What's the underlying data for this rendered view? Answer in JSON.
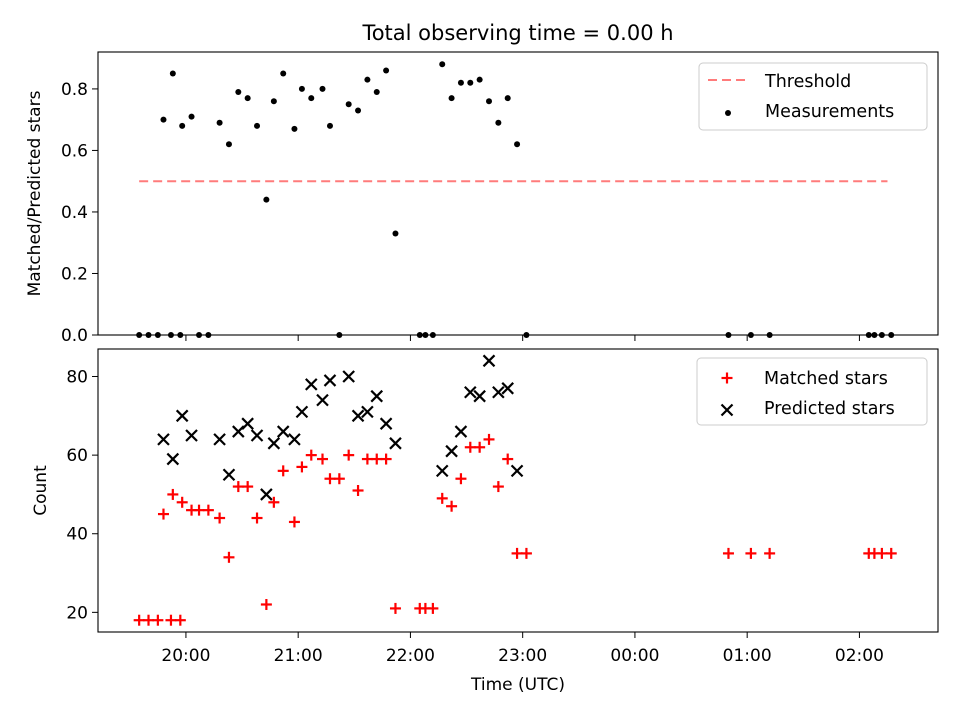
{
  "figure": {
    "title": "Total observing time = 0.00 h"
  },
  "chart_data": [
    {
      "type": "scatter",
      "title": "Total observing time = 0.00 h",
      "xlabel": "",
      "ylabel": "Matched/Predicted stars",
      "xlim": [
        "19:13",
        "02:42"
      ],
      "ylim": [
        0,
        0.92
      ],
      "yticks": [
        0.0,
        0.2,
        0.4,
        0.6,
        0.8
      ],
      "ytick_labels": [
        "0.0",
        "0.2",
        "0.4",
        "0.6",
        "0.8"
      ],
      "grid": false,
      "legend_position": "upper right",
      "threshold": {
        "name": "Threshold",
        "value": 0.5,
        "x_start": "19:35",
        "x_end": "02:15",
        "color": "#ff7b7b",
        "style": "dashed"
      },
      "series": [
        {
          "name": "Measurements",
          "marker": "dot",
          "color": "#000000",
          "points": [
            [
              "19:35",
              0.0
            ],
            [
              "19:40",
              0.0
            ],
            [
              "19:45",
              0.0
            ],
            [
              "19:52",
              0.0
            ],
            [
              "19:57",
              0.0
            ],
            [
              "19:48",
              0.7
            ],
            [
              "19:53",
              0.85
            ],
            [
              "19:58",
              0.68
            ],
            [
              "20:03",
              0.71
            ],
            [
              "20:07",
              0.0
            ],
            [
              "20:12",
              0.0
            ],
            [
              "20:18",
              0.69
            ],
            [
              "20:23",
              0.62
            ],
            [
              "20:28",
              0.79
            ],
            [
              "20:33",
              0.77
            ],
            [
              "20:38",
              0.68
            ],
            [
              "20:43",
              0.44
            ],
            [
              "20:47",
              0.76
            ],
            [
              "20:52",
              0.85
            ],
            [
              "20:58",
              0.67
            ],
            [
              "21:02",
              0.8
            ],
            [
              "21:07",
              0.77
            ],
            [
              "21:13",
              0.8
            ],
            [
              "21:17",
              0.68
            ],
            [
              "21:22",
              0.0
            ],
            [
              "21:27",
              0.75
            ],
            [
              "21:32",
              0.73
            ],
            [
              "21:37",
              0.83
            ],
            [
              "21:42",
              0.79
            ],
            [
              "21:47",
              0.86
            ],
            [
              "21:52",
              0.33
            ],
            [
              "22:05",
              0.0
            ],
            [
              "22:08",
              0.0
            ],
            [
              "22:12",
              0.0
            ],
            [
              "22:17",
              0.88
            ],
            [
              "22:22",
              0.77
            ],
            [
              "22:27",
              0.82
            ],
            [
              "22:32",
              0.82
            ],
            [
              "22:37",
              0.83
            ],
            [
              "22:42",
              0.76
            ],
            [
              "22:47",
              0.69
            ],
            [
              "22:52",
              0.77
            ],
            [
              "22:57",
              0.62
            ],
            [
              "23:02",
              0.0
            ],
            [
              "00:50",
              0.0
            ],
            [
              "01:02",
              0.0
            ],
            [
              "01:12",
              0.0
            ],
            [
              "02:05",
              0.0
            ],
            [
              "02:08",
              0.0
            ],
            [
              "02:12",
              0.0
            ],
            [
              "02:17",
              0.0
            ]
          ]
        }
      ]
    },
    {
      "type": "scatter",
      "xlabel": "Time (UTC)",
      "ylabel": "Count",
      "xlim": [
        "19:13",
        "02:42"
      ],
      "ylim": [
        15,
        87
      ],
      "yticks": [
        20,
        40,
        60,
        80
      ],
      "ytick_labels": [
        "20",
        "40",
        "60",
        "80"
      ],
      "xticks": [
        "20:00",
        "21:00",
        "22:00",
        "23:00",
        "00:00",
        "01:00",
        "02:00"
      ],
      "grid": false,
      "legend_position": "upper right",
      "series": [
        {
          "name": "Matched stars",
          "marker": "plus",
          "color": "#ff0000",
          "points": [
            [
              "19:35",
              18
            ],
            [
              "19:40",
              18
            ],
            [
              "19:45",
              18
            ],
            [
              "19:52",
              18
            ],
            [
              "19:57",
              18
            ],
            [
              "19:48",
              45
            ],
            [
              "19:53",
              50
            ],
            [
              "19:58",
              48
            ],
            [
              "20:03",
              46
            ],
            [
              "20:07",
              46
            ],
            [
              "20:12",
              46
            ],
            [
              "20:18",
              44
            ],
            [
              "20:23",
              34
            ],
            [
              "20:28",
              52
            ],
            [
              "20:33",
              52
            ],
            [
              "20:38",
              44
            ],
            [
              "20:43",
              22
            ],
            [
              "20:47",
              48
            ],
            [
              "20:52",
              56
            ],
            [
              "20:58",
              43
            ],
            [
              "21:02",
              57
            ],
            [
              "21:07",
              60
            ],
            [
              "21:13",
              59
            ],
            [
              "21:17",
              54
            ],
            [
              "21:22",
              54
            ],
            [
              "21:27",
              60
            ],
            [
              "21:32",
              51
            ],
            [
              "21:37",
              59
            ],
            [
              "21:42",
              59
            ],
            [
              "21:47",
              59
            ],
            [
              "21:52",
              21
            ],
            [
              "22:05",
              21
            ],
            [
              "22:08",
              21
            ],
            [
              "22:12",
              21
            ],
            [
              "22:17",
              49
            ],
            [
              "22:22",
              47
            ],
            [
              "22:27",
              54
            ],
            [
              "22:32",
              62
            ],
            [
              "22:37",
              62
            ],
            [
              "22:42",
              64
            ],
            [
              "22:47",
              52
            ],
            [
              "22:52",
              59
            ],
            [
              "22:57",
              35
            ],
            [
              "23:02",
              35
            ],
            [
              "00:50",
              35
            ],
            [
              "01:02",
              35
            ],
            [
              "01:12",
              35
            ],
            [
              "02:05",
              35
            ],
            [
              "02:08",
              35
            ],
            [
              "02:12",
              35
            ],
            [
              "02:17",
              35
            ]
          ]
        },
        {
          "name": "Predicted stars",
          "marker": "x",
          "color": "#000000",
          "points": [
            [
              "19:48",
              64
            ],
            [
              "19:53",
              59
            ],
            [
              "19:58",
              70
            ],
            [
              "20:03",
              65
            ],
            [
              "20:18",
              64
            ],
            [
              "20:23",
              55
            ],
            [
              "20:28",
              66
            ],
            [
              "20:33",
              68
            ],
            [
              "20:38",
              65
            ],
            [
              "20:43",
              50
            ],
            [
              "20:47",
              63
            ],
            [
              "20:52",
              66
            ],
            [
              "20:58",
              64
            ],
            [
              "21:02",
              71
            ],
            [
              "21:07",
              78
            ],
            [
              "21:13",
              74
            ],
            [
              "21:17",
              79
            ],
            [
              "21:27",
              80
            ],
            [
              "21:32",
              70
            ],
            [
              "21:37",
              71
            ],
            [
              "21:42",
              75
            ],
            [
              "21:47",
              68
            ],
            [
              "21:52",
              63
            ],
            [
              "22:17",
              56
            ],
            [
              "22:22",
              61
            ],
            [
              "22:27",
              66
            ],
            [
              "22:32",
              76
            ],
            [
              "22:37",
              75
            ],
            [
              "22:42",
              84
            ],
            [
              "22:47",
              76
            ],
            [
              "22:52",
              77
            ],
            [
              "22:57",
              56
            ]
          ]
        }
      ]
    }
  ]
}
